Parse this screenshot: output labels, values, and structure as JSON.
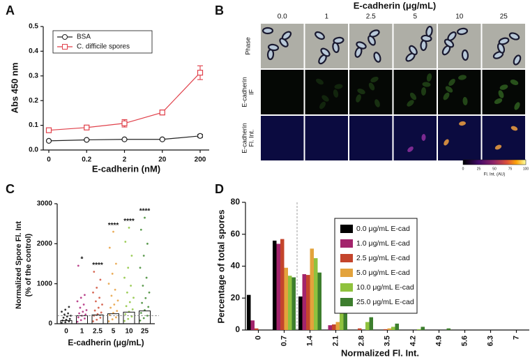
{
  "chart_data": [
    {
      "type": "line",
      "panel": "A",
      "xlabel": "E-cadherin (nM)",
      "ylabel": "Abs 450 nm",
      "categories": [
        "0",
        "0.2",
        "2",
        "20",
        "200"
      ],
      "series": [
        {
          "name": "BSA",
          "color": "#222222",
          "marker": "circle",
          "values": [
            0.037,
            0.041,
            0.043,
            0.043,
            0.057
          ],
          "errors": [
            0.002,
            0.002,
            0.002,
            0.002,
            0.006
          ]
        },
        {
          "name": "C. difficile spores",
          "color": "#e0404a",
          "marker": "square",
          "values": [
            0.08,
            0.091,
            0.108,
            0.152,
            0.313
          ],
          "errors": [
            0.006,
            0.007,
            0.015,
            0.01,
            0.028
          ]
        }
      ],
      "ylim": [
        0,
        0.5
      ],
      "yticks": [
        {
          "value": 0,
          "label": "0.0"
        },
        0.1,
        0.2,
        0.3,
        0.4,
        0.5
      ]
    },
    {
      "type": "image_grid",
      "panel": "B",
      "title": "E-cadherin (μg/mL)",
      "columns": [
        "0.0",
        "1",
        "2.5",
        "5",
        "10",
        "25"
      ],
      "rows": [
        [
          "Phase"
        ],
        [
          "E-cadherin",
          "IF"
        ],
        [
          "E-cadherin",
          "Fl. Int."
        ]
      ],
      "colorbar": {
        "ticks": [
          0,
          25,
          50,
          75,
          100
        ],
        "label": "Fl. Int. (AU)"
      }
    },
    {
      "type": "strip",
      "panel": "C",
      "xlabel": "E-cadherin (μg/mL)",
      "ylabel": [
        "Normalized Spore Fl. Int",
        "(% of the control)"
      ],
      "categories": [
        "0",
        "1",
        "2.5",
        "5",
        "10",
        "25"
      ],
      "colors": [
        "#111111",
        "#b0287a",
        "#d0503a",
        "#e8a040",
        "#8cc43c",
        "#3f8a30"
      ],
      "values": [
        80,
        200,
        220,
        250,
        290,
        320
      ],
      "points": [
        [
          20,
          40,
          60,
          80,
          100,
          120,
          150,
          180,
          200,
          230,
          260,
          300,
          350,
          420
        ],
        [
          50,
          90,
          130,
          160,
          200,
          230,
          260,
          300,
          340,
          400,
          480,
          560,
          650,
          720,
          1450
        ],
        [
          60,
          100,
          150,
          200,
          240,
          280,
          330,
          400,
          480,
          560,
          650,
          780,
          900,
          1100,
          1300
        ],
        [
          60,
          110,
          160,
          220,
          270,
          320,
          400,
          480,
          580,
          700,
          850,
          1000,
          1250,
          1500,
          1900,
          2300
        ],
        [
          70,
          120,
          180,
          240,
          300,
          360,
          440,
          540,
          650,
          780,
          950,
          1150,
          1400,
          1700,
          2050,
          2400
        ],
        [
          80,
          140,
          200,
          270,
          340,
          420,
          520,
          640,
          780,
          950,
          1150,
          1400,
          1700,
          2000,
          2350,
          2650
        ]
      ],
      "annotations": [
        null,
        "*",
        "****",
        "****",
        "****",
        "****"
      ],
      "hline": 200,
      "ylim": [
        0,
        3000
      ],
      "yticks": [
        0,
        1000,
        2000,
        3000
      ]
    },
    {
      "type": "bar",
      "panel": "D",
      "xlabel": "Normalized Fl. Int.",
      "ylabel": "Percentage of total spores",
      "categories": [
        "0",
        "0.7",
        "1.4",
        "2.1",
        "2.8",
        "3.5",
        "4.2",
        "4.9",
        "5.6",
        "6.3",
        "7"
      ],
      "series": [
        {
          "name": "0.0 μg/mL E-cad",
          "color": "#000000",
          "values": [
            22,
            56,
            21,
            0,
            0,
            0,
            0,
            0,
            0,
            0,
            0
          ]
        },
        {
          "name": "1.0 μg/mL E-cad",
          "color": "#a3246c",
          "values": [
            6,
            54,
            35,
            3,
            0,
            0,
            0,
            0,
            0,
            0,
            0
          ]
        },
        {
          "name": "2.5 μg/mL E-cad",
          "color": "#c4452c",
          "values": [
            1,
            57,
            34.5,
            3.5,
            1,
            0.5,
            0,
            0,
            0,
            0,
            0
          ]
        },
        {
          "name": "5.0 μg/mL E-cad",
          "color": "#e3a33c",
          "values": [
            0,
            39,
            51,
            5,
            0,
            1,
            0,
            0,
            0,
            0,
            0
          ]
        },
        {
          "name": "10.0 μg/mL E-cad",
          "color": "#8fc23e",
          "values": [
            0,
            34,
            45,
            11,
            5,
            2,
            0.5,
            0,
            0,
            0,
            0
          ]
        },
        {
          "name": "25.0 μg/mL E-cad",
          "color": "#3d7e2e",
          "values": [
            0,
            33,
            36,
            13,
            8,
            4,
            2,
            1,
            0,
            0,
            0
          ]
        }
      ],
      "ylim": [
        0,
        80
      ],
      "yticks": [
        0,
        20,
        40,
        60,
        80
      ]
    }
  ]
}
